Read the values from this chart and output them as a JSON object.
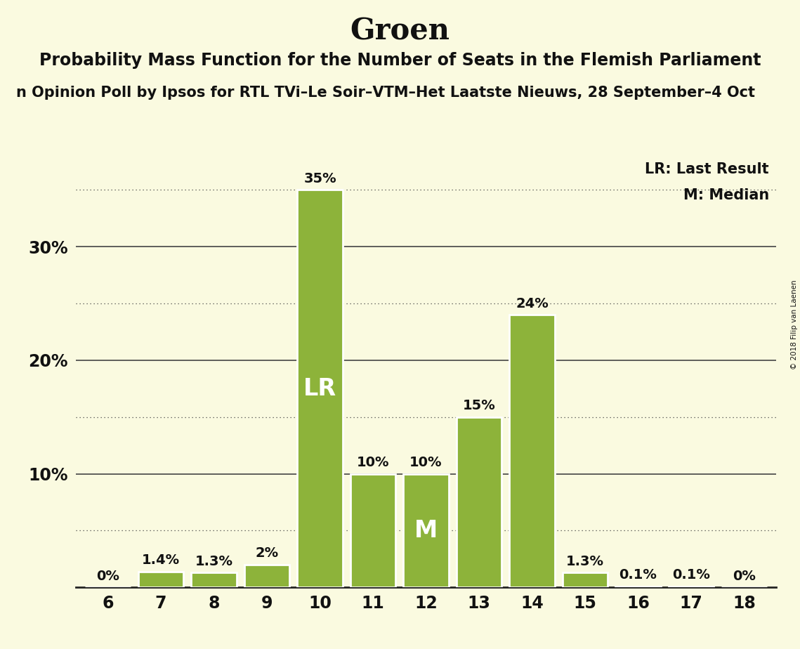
{
  "title": "Groen",
  "subtitle": "Probability Mass Function for the Number of Seats in the Flemish Parliament",
  "poll_text": "n Opinion Poll by Ipsos for RTL TVi–Le Soir–VTM–Het Laatste Nieuws, 28 September–4 Oct",
  "copyright": "© 2018 Filip van Laenen",
  "seats": [
    6,
    7,
    8,
    9,
    10,
    11,
    12,
    13,
    14,
    15,
    16,
    17,
    18
  ],
  "probabilities": [
    0.0,
    1.4,
    1.3,
    2.0,
    35.0,
    10.0,
    10.0,
    15.0,
    24.0,
    1.3,
    0.1,
    0.1,
    0.0
  ],
  "bar_color": "#8db33a",
  "bar_edge_color": "#ffffff",
  "background_color": "#fafae0",
  "lr_seat": 10,
  "median_seat": 12,
  "lr_label": "LR",
  "median_label": "M",
  "legend_lr": "LR: Last Result",
  "legend_m": "M: Median",
  "title_fontsize": 30,
  "subtitle_fontsize": 17,
  "poll_fontsize": 15,
  "bar_label_fontsize": 14,
  "tick_fontsize": 17,
  "legend_fontsize": 15,
  "lr_m_fontsize": 24,
  "ylim": [
    0,
    38
  ],
  "ytick_positions": [
    10,
    20,
    30
  ],
  "ytick_labels": [
    "10%",
    "20%",
    "30%"
  ],
  "solid_yticks": [
    10,
    20,
    30
  ],
  "dotted_yticks": [
    5,
    15,
    25,
    35
  ],
  "text_color": "#111111",
  "axis_color": "#222222",
  "grid_color": "#444444"
}
